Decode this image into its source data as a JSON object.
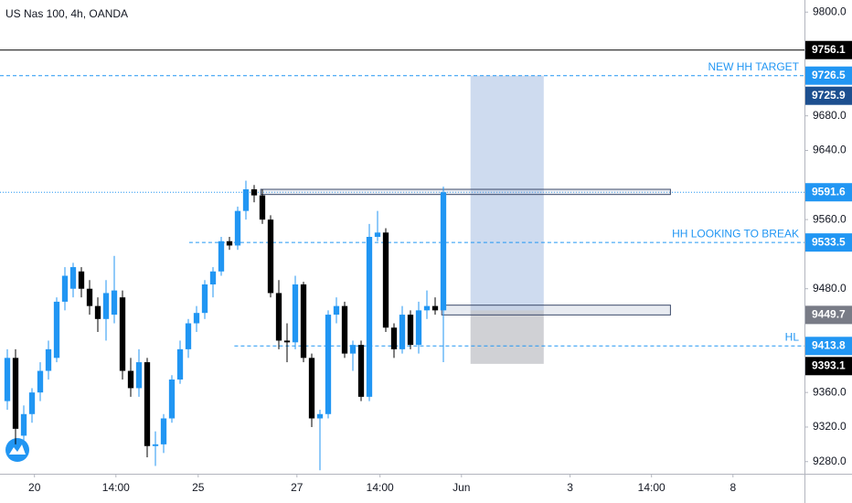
{
  "chart_data": {
    "type": "candlestick",
    "title": "US Nas 100, 4h, OANDA",
    "up_color": "#2196f3",
    "down_color": "#000000",
    "x": [
      0,
      1,
      2,
      3,
      4,
      5,
      6,
      7,
      8,
      9,
      10,
      11,
      12,
      13,
      14,
      15,
      16,
      17,
      18,
      19,
      20,
      21,
      22,
      23,
      24,
      25,
      26,
      27,
      28,
      29,
      30,
      31,
      32,
      33,
      34,
      35,
      36,
      37,
      38,
      39,
      40,
      41,
      42,
      43,
      44,
      45,
      46,
      47,
      48,
      49,
      50,
      51,
      52,
      53
    ],
    "open": [
      9350,
      9400,
      9310,
      9335,
      9360,
      9385,
      9400,
      9465,
      9480,
      9500,
      9480,
      9460,
      9445,
      9450,
      9470,
      9385,
      9365,
      9395,
      9298,
      9300,
      9330,
      9375,
      9410,
      9440,
      9452,
      9485,
      9500,
      9535,
      9530,
      9570,
      9595,
      9588,
      9560,
      9475,
      9420,
      9418,
      9485,
      9400,
      9330,
      9335,
      9450,
      9460,
      9405,
      9415,
      9355,
      9540,
      9545,
      9435,
      9410,
      9450,
      9415,
      9455,
      9460,
      9455
    ],
    "high": [
      9410,
      9410,
      9345,
      9365,
      9395,
      9420,
      9470,
      9505,
      9510,
      9505,
      9490,
      9470,
      9490,
      9518,
      9478,
      9400,
      9410,
      9400,
      9315,
      9335,
      9380,
      9420,
      9445,
      9460,
      9490,
      9505,
      9540,
      9540,
      9575,
      9605,
      9600,
      9595,
      9565,
      9490,
      9440,
      9495,
      9488,
      9405,
      9340,
      9455,
      9470,
      9465,
      9420,
      9420,
      9555,
      9570,
      9550,
      9440,
      9460,
      9455,
      9465,
      9478,
      9470,
      9598
    ],
    "low": [
      9340,
      9300,
      9300,
      9325,
      9350,
      9375,
      9395,
      9455,
      9470,
      9470,
      9450,
      9430,
      9420,
      9440,
      9375,
      9355,
      9355,
      9285,
      9275,
      9290,
      9325,
      9370,
      9400,
      9430,
      9445,
      9470,
      9495,
      9525,
      9525,
      9560,
      9580,
      9555,
      9470,
      9410,
      9395,
      9410,
      9395,
      9320,
      9270,
      9330,
      9440,
      9400,
      9385,
      9350,
      9350,
      9535,
      9430,
      9400,
      9405,
      9410,
      9405,
      9445,
      9450,
      9395
    ],
    "close": [
      9400,
      9318,
      9335,
      9360,
      9385,
      9410,
      9465,
      9495,
      9505,
      9480,
      9460,
      9445,
      9475,
      9478,
      9385,
      9365,
      9395,
      9298,
      9300,
      9330,
      9375,
      9410,
      9440,
      9452,
      9485,
      9500,
      9535,
      9530,
      9570,
      9595,
      9588,
      9560,
      9475,
      9420,
      9418,
      9485,
      9400,
      9330,
      9335,
      9450,
      9460,
      9405,
      9415,
      9355,
      9540,
      9545,
      9435,
      9410,
      9450,
      9415,
      9455,
      9460,
      9455,
      9591.6
    ],
    "xlim": [
      -0.89,
      96.89
    ],
    "xticks": [
      {
        "value": 3.3,
        "label": "20"
      },
      {
        "value": 13.2,
        "label": "14:00"
      },
      {
        "value": 23.2,
        "label": "25"
      },
      {
        "value": 35.2,
        "label": "27"
      },
      {
        "value": 45.3,
        "label": "14:00"
      },
      {
        "value": 55.2,
        "label": "Jun"
      },
      {
        "value": 68.4,
        "label": "3"
      },
      {
        "value": 78.3,
        "label": "14:00"
      },
      {
        "value": 88.2,
        "label": "8"
      }
    ],
    "ylim": [
      9266,
      9814
    ],
    "yticks": [
      {
        "value": 9280,
        "label": "9280.0"
      },
      {
        "value": 9320,
        "label": "9320.0"
      },
      {
        "value": 9360,
        "label": "9360.0"
      },
      {
        "value": 9480,
        "label": "9480.0"
      },
      {
        "value": 9560,
        "label": "9560.0"
      },
      {
        "value": 9640,
        "label": "9640.0"
      },
      {
        "value": 9680,
        "label": "9680.0"
      },
      {
        "value": 9800,
        "label": "9800.0"
      }
    ],
    "price_lines": [
      {
        "value": 9756.1,
        "color": "#000000",
        "style": "solid",
        "line": true
      },
      {
        "value": 9726.5,
        "color": "#2196f3",
        "style": "dashed",
        "line": true,
        "annotation": "NEW HH TARGET"
      },
      {
        "value": 9725.9,
        "color": "#1c4f8f",
        "line": false
      },
      {
        "value": 9591.6,
        "color": "#2196f3",
        "style": "dotted",
        "line": true
      },
      {
        "value": 9533.5,
        "color": "#2196f3",
        "style": "dashed",
        "line": true,
        "from": 22.1,
        "annotation": "HH LOOKING TO BREAK"
      },
      {
        "value": 9449.7,
        "color": "#787b86",
        "line": false
      },
      {
        "value": 9413.8,
        "color": "#2196f3",
        "style": "dashed",
        "line": true,
        "from": 27.6,
        "annotation": "HL"
      },
      {
        "value": 9393.1,
        "color": "#000000",
        "line": false
      }
    ],
    "zones": [
      {
        "top": 9595,
        "bottom": 9589,
        "from": 30.8,
        "to": 80.6
      },
      {
        "top": 9461,
        "bottom": 9449.7,
        "from": 52.8,
        "to": 80.6
      }
    ],
    "position": {
      "target": 9726.5,
      "entry": 9455,
      "stop": 9393.1,
      "from": 56.3,
      "to": 65.2
    }
  }
}
